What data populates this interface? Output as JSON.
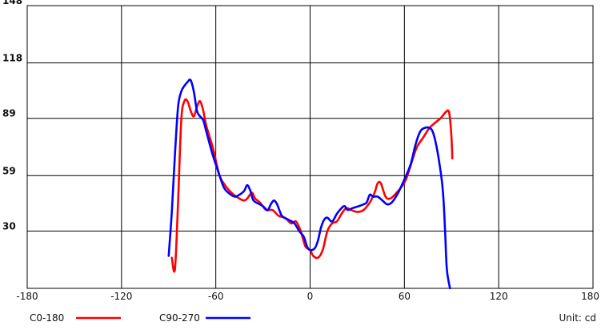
{
  "chart_data": {
    "type": "line",
    "title": "",
    "xlabel": "",
    "ylabel": "",
    "xlim": [
      -180,
      180
    ],
    "ylim": [
      0,
      148
    ],
    "x_ticks": [
      -180,
      -120,
      -60,
      0,
      60,
      120,
      180
    ],
    "x_tick_labels": [
      "-180",
      "-120",
      "-60",
      "0",
      "60",
      "120",
      "180"
    ],
    "y_ticks": [
      30,
      59,
      89,
      118,
      148
    ],
    "y_tick_labels": [
      "30",
      "59",
      "89",
      "118",
      "148"
    ],
    "grid": true,
    "unit_label": "Unit: cd",
    "legend_position": "bottom",
    "series": [
      {
        "name": "C0-180",
        "color": "#ff0000",
        "points": [
          [
            -88,
            16
          ],
          [
            -86,
            10
          ],
          [
            -84,
            45
          ],
          [
            -82,
            88
          ],
          [
            -80,
            98
          ],
          [
            -78,
            98
          ],
          [
            -76,
            93
          ],
          [
            -74,
            90
          ],
          [
            -72,
            95
          ],
          [
            -70,
            98
          ],
          [
            -68,
            93
          ],
          [
            -66,
            85
          ],
          [
            -62,
            74
          ],
          [
            -58,
            60
          ],
          [
            -55,
            55
          ],
          [
            -50,
            50
          ],
          [
            -45,
            47
          ],
          [
            -42,
            46
          ],
          [
            -40,
            47
          ],
          [
            -37,
            50
          ],
          [
            -35,
            47
          ],
          [
            -32,
            45
          ],
          [
            -28,
            41
          ],
          [
            -24,
            41
          ],
          [
            -20,
            38
          ],
          [
            -16,
            37
          ],
          [
            -12,
            34
          ],
          [
            -9,
            35
          ],
          [
            -6,
            30
          ],
          [
            -3,
            22
          ],
          [
            0,
            20
          ],
          [
            2,
            17
          ],
          [
            5,
            16
          ],
          [
            8,
            20
          ],
          [
            11,
            30
          ],
          [
            14,
            34
          ],
          [
            17,
            35
          ],
          [
            20,
            39
          ],
          [
            23,
            42
          ],
          [
            26,
            41
          ],
          [
            30,
            40
          ],
          [
            34,
            41
          ],
          [
            38,
            45
          ],
          [
            41,
            50
          ],
          [
            43,
            55
          ],
          [
            45,
            55
          ],
          [
            48,
            48
          ],
          [
            51,
            47
          ],
          [
            55,
            50
          ],
          [
            58,
            53
          ],
          [
            61,
            57
          ],
          [
            65,
            67
          ],
          [
            68,
            74
          ],
          [
            72,
            79
          ],
          [
            76,
            84
          ],
          [
            80,
            87
          ],
          [
            83,
            89
          ],
          [
            86,
            92
          ],
          [
            88,
            93
          ],
          [
            89,
            89
          ],
          [
            90,
            78
          ],
          [
            90.5,
            68
          ]
        ]
      },
      {
        "name": "C90-270",
        "color": "#0000ff",
        "points": [
          [
            -90,
            17
          ],
          [
            -88,
            40
          ],
          [
            -86,
            70
          ],
          [
            -84,
            95
          ],
          [
            -82,
            103
          ],
          [
            -80,
            106
          ],
          [
            -78,
            108
          ],
          [
            -76,
            109
          ],
          [
            -74,
            103
          ],
          [
            -72,
            93
          ],
          [
            -70,
            90
          ],
          [
            -68,
            88
          ],
          [
            -66,
            82
          ],
          [
            -62,
            70
          ],
          [
            -58,
            60
          ],
          [
            -55,
            53
          ],
          [
            -52,
            50
          ],
          [
            -48,
            48
          ],
          [
            -45,
            49
          ],
          [
            -42,
            51
          ],
          [
            -40,
            54
          ],
          [
            -38,
            51
          ],
          [
            -36,
            46
          ],
          [
            -32,
            44
          ],
          [
            -30,
            43
          ],
          [
            -27,
            41
          ],
          [
            -25,
            44
          ],
          [
            -23,
            46
          ],
          [
            -21,
            44
          ],
          [
            -18,
            38
          ],
          [
            -14,
            36
          ],
          [
            -10,
            34
          ],
          [
            -7,
            30
          ],
          [
            -4,
            27
          ],
          [
            -2,
            22
          ],
          [
            0,
            20
          ],
          [
            3,
            21
          ],
          [
            5,
            25
          ],
          [
            7,
            32
          ],
          [
            9,
            36
          ],
          [
            11,
            37
          ],
          [
            14,
            35
          ],
          [
            17,
            39
          ],
          [
            20,
            42
          ],
          [
            22,
            43
          ],
          [
            24,
            41
          ],
          [
            27,
            42
          ],
          [
            31,
            43
          ],
          [
            34,
            44
          ],
          [
            36,
            45
          ],
          [
            38,
            49
          ],
          [
            40,
            48
          ],
          [
            43,
            48
          ],
          [
            46,
            46
          ],
          [
            49,
            44
          ],
          [
            52,
            45
          ],
          [
            56,
            50
          ],
          [
            60,
            57
          ],
          [
            64,
            65
          ],
          [
            67,
            75
          ],
          [
            70,
            82
          ],
          [
            73,
            84
          ],
          [
            76,
            84
          ],
          [
            78,
            82
          ],
          [
            80,
            76
          ],
          [
            82,
            67
          ],
          [
            84,
            55
          ],
          [
            85,
            45
          ],
          [
            86,
            28
          ],
          [
            87,
            10
          ],
          [
            89,
            0
          ]
        ]
      }
    ]
  }
}
